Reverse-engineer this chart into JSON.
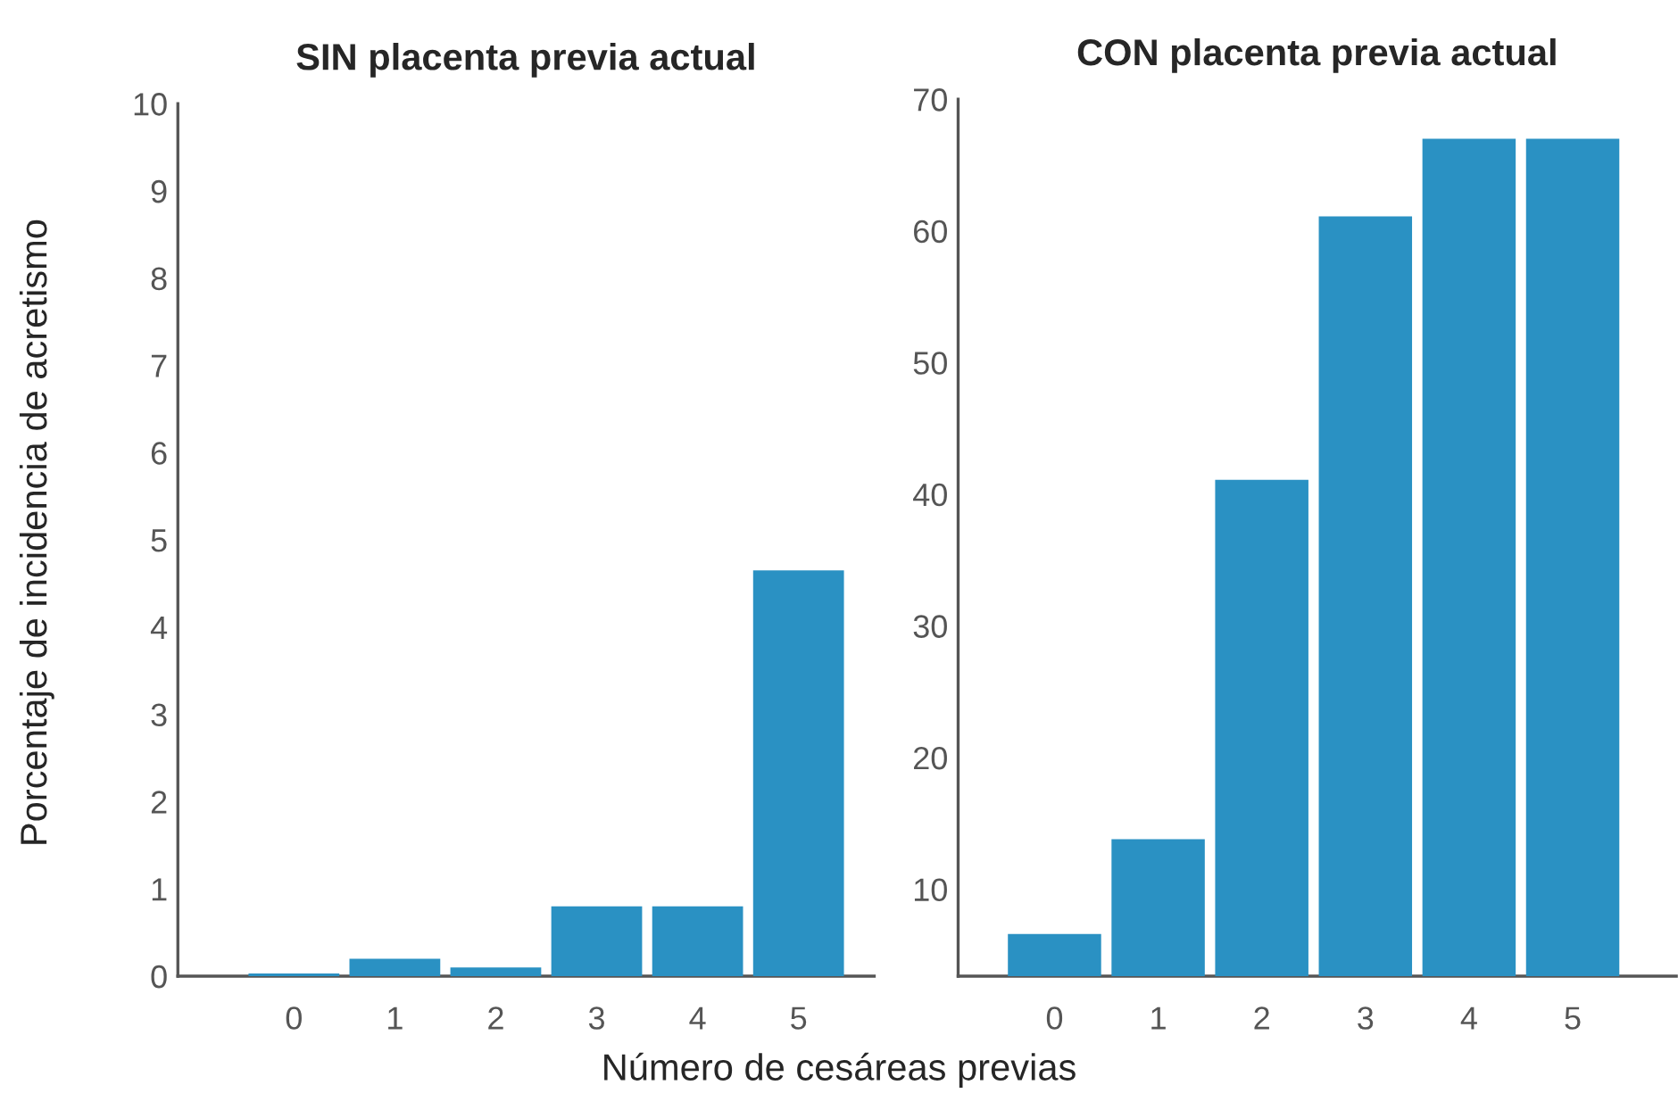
{
  "chart_data": [
    {
      "type": "bar",
      "title": "SIN placenta previa actual",
      "ylabel": "Porcentaje de incidencia de acretismo",
      "xlabel": "Número de cesáreas previas",
      "categories": [
        "0",
        "1",
        "2",
        "3",
        "4",
        "5"
      ],
      "values": [
        0.03,
        0.2,
        0.1,
        0.8,
        0.8,
        4.65
      ],
      "color": "#2a91c3",
      "ylim": [
        0,
        10
      ],
      "yticks": [
        0,
        1,
        2,
        3,
        4,
        5,
        6,
        7,
        8,
        9,
        10
      ],
      "grid": false
    },
    {
      "type": "bar",
      "title": "CON placenta previa actual",
      "categories": [
        "0",
        "1",
        "2",
        "3",
        "4",
        "5"
      ],
      "values": [
        6.6,
        13.8,
        41.1,
        61.1,
        67.0,
        67.0
      ],
      "color": "#2a91c3",
      "ylim": [
        3.4,
        70
      ],
      "yticks": [
        10,
        20,
        30,
        40,
        50,
        60,
        70
      ],
      "grid": false
    }
  ]
}
